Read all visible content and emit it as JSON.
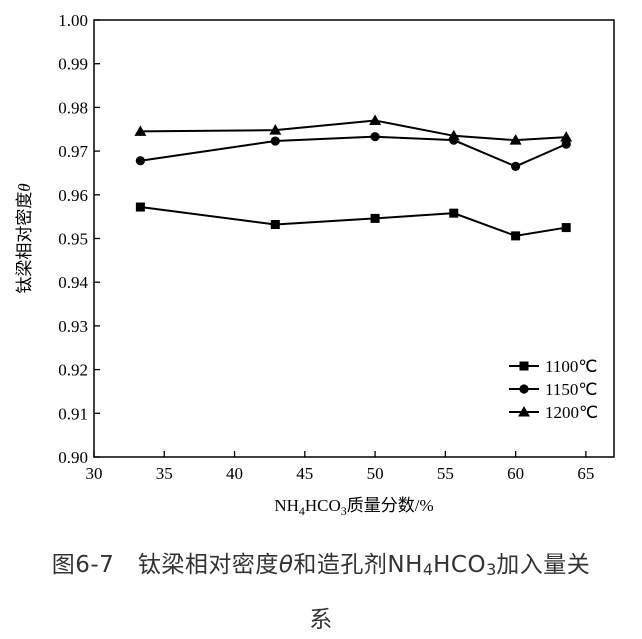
{
  "chart_data": {
    "type": "line",
    "x_label_parts": [
      "NH",
      "4",
      "HCO",
      "3",
      "质量分数/%"
    ],
    "y_label_parts": [
      "钛梁相对密度",
      "θ"
    ],
    "xlim": [
      30,
      67
    ],
    "ylim": [
      0.9,
      1.0
    ],
    "x_ticks": [
      30,
      35,
      40,
      45,
      50,
      55,
      60,
      65
    ],
    "y_ticks": [
      0.9,
      0.91,
      0.92,
      0.93,
      0.94,
      0.95,
      0.96,
      0.97,
      0.98,
      0.99,
      1.0
    ],
    "legend_position": "lower-right",
    "series": [
      {
        "name": "1100℃",
        "marker": "square",
        "x": [
          33.3,
          42.9,
          50.0,
          55.6,
          60.0,
          63.6
        ],
        "y": [
          0.9572,
          0.9532,
          0.9546,
          0.9558,
          0.9506,
          0.9525
        ]
      },
      {
        "name": "1150℃",
        "marker": "circle",
        "x": [
          33.3,
          42.9,
          50.0,
          55.6,
          60.0,
          63.6
        ],
        "y": [
          0.9678,
          0.9723,
          0.9733,
          0.9725,
          0.9665,
          0.9716
        ]
      },
      {
        "name": "1200℃",
        "marker": "triangle",
        "x": [
          33.3,
          42.9,
          50.0,
          55.6,
          60.0,
          63.6
        ],
        "y": [
          0.9745,
          0.9748,
          0.977,
          0.9735,
          0.9725,
          0.9732
        ]
      }
    ]
  },
  "caption": {
    "line1_prefix": "图6-7　钛梁相对密度",
    "theta": "θ",
    "line1_mid": "和造孔剂NH",
    "sub4": "4",
    "line1_hco": "HCO",
    "sub3": "3",
    "line1_suffix": "加入量关",
    "line2": "系"
  }
}
